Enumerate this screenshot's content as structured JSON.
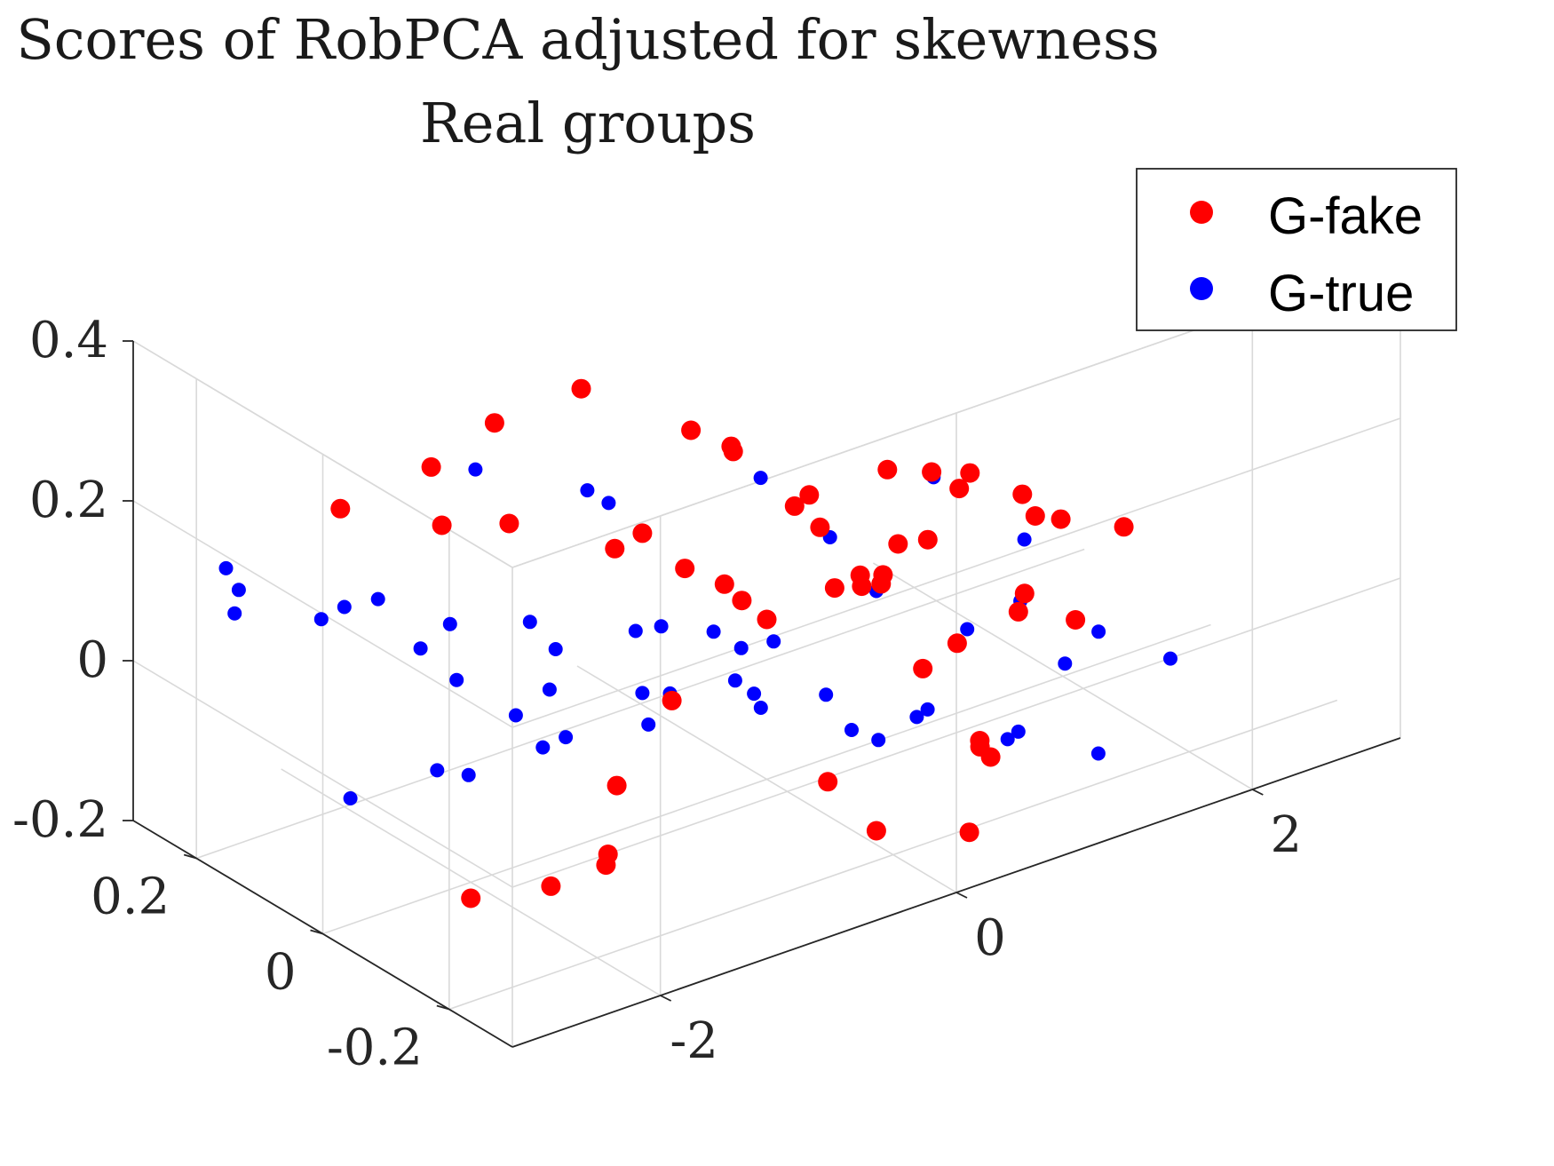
{
  "chart_data": {
    "type": "scatter",
    "dimensions": 3,
    "title": "Scores of RobPCA adjusted for skewness",
    "subtitle": "Real groups",
    "xlabel": "",
    "ylabel": "",
    "zlabel": "",
    "grid": true,
    "legend_position": "top-right",
    "axes": {
      "x": {
        "range": [
          -3,
          3
        ],
        "ticks": [
          -2,
          0,
          2
        ],
        "tick_labels": [
          "-2",
          "0",
          "2"
        ]
      },
      "y": {
        "range": [
          -0.3,
          0.3
        ],
        "ticks": [
          -0.2,
          0,
          0.2
        ],
        "tick_labels": [
          "-0.2",
          "0",
          "0.2"
        ]
      },
      "z": {
        "range": [
          -0.2,
          0.4
        ],
        "ticks": [
          -0.2,
          0,
          0.2,
          0.4
        ],
        "tick_labels": [
          "-0.2",
          "0",
          "0.2",
          "0.4"
        ]
      }
    },
    "series": [
      {
        "name": "G-fake",
        "color": "#ff0000",
        "points": [
          [
            0.5,
            0.05,
            0.1
          ],
          [
            0.9,
            0.02,
            0.12
          ],
          [
            1.3,
            0.0,
            0.08
          ],
          [
            1.6,
            -0.05,
            0.05
          ],
          [
            0.2,
            0.1,
            0.15
          ],
          [
            0.7,
            -0.02,
            0.02
          ],
          [
            1.1,
            0.05,
            0.0
          ],
          [
            1.4,
            -0.08,
            -0.02
          ],
          [
            0.0,
            0.12,
            0.18
          ],
          [
            0.4,
            0.15,
            0.12
          ],
          [
            -0.4,
            0.2,
            0.22
          ],
          [
            -0.9,
            0.22,
            0.2
          ],
          [
            -1.2,
            0.25,
            0.15
          ],
          [
            0.8,
            0.08,
            -0.05
          ],
          [
            1.2,
            0.1,
            -0.08
          ],
          [
            1.7,
            0.0,
            -0.1
          ],
          [
            2.0,
            -0.02,
            -0.12
          ],
          [
            1.5,
            0.05,
            -0.15
          ],
          [
            0.6,
            0.18,
            -0.1
          ],
          [
            0.3,
            0.2,
            -0.05
          ],
          [
            -0.2,
            0.15,
            0.05
          ],
          [
            -0.6,
            0.1,
            0.08
          ],
          [
            0.9,
            -0.05,
            0.15
          ],
          [
            1.3,
            -0.1,
            0.12
          ],
          [
            1.9,
            -0.12,
            0.05
          ],
          [
            -1.5,
            -0.1,
            -0.15
          ],
          [
            -1.8,
            -0.08,
            -0.18
          ],
          [
            -1.3,
            -0.05,
            -0.2
          ],
          [
            -2.0,
            0.0,
            -0.22
          ],
          [
            -0.8,
            0.05,
            -0.18
          ],
          [
            0.1,
            -0.15,
            -0.2
          ],
          [
            0.6,
            -0.18,
            -0.22
          ],
          [
            1.0,
            -0.12,
            -0.18
          ],
          [
            -1.0,
            0.28,
            0.05
          ],
          [
            -1.6,
            0.3,
            0.1
          ],
          [
            0.2,
            -0.2,
            0.02
          ],
          [
            0.5,
            -0.22,
            -0.08
          ],
          [
            1.8,
            0.1,
            0.02
          ],
          [
            2.2,
            0.05,
            -0.04
          ],
          [
            -0.3,
            0.08,
            -0.12
          ],
          [
            0.0,
            0.0,
            0.0
          ],
          [
            0.7,
            0.12,
            0.04
          ],
          [
            1.0,
            0.15,
            -0.02
          ],
          [
            -0.5,
            -0.05,
            0.1
          ],
          [
            -1.1,
            0.15,
            0.12
          ],
          [
            1.4,
            0.18,
            -0.12
          ],
          [
            1.6,
            0.12,
            -0.06
          ],
          [
            0.3,
            -0.08,
            0.06
          ],
          [
            -0.1,
            -0.12,
            -0.14
          ],
          [
            0.8,
            -0.15,
            -0.14
          ]
        ]
      },
      {
        "name": "G-true",
        "color": "#0000ff",
        "points": [
          [
            -0.5,
            0.05,
            0.0
          ],
          [
            -1.0,
            0.1,
            -0.02
          ],
          [
            -1.5,
            0.15,
            0.02
          ],
          [
            -2.0,
            0.2,
            0.05
          ],
          [
            -2.5,
            0.25,
            0.08
          ],
          [
            -0.3,
            -0.05,
            -0.05
          ],
          [
            -0.8,
            0.0,
            -0.08
          ],
          [
            -1.3,
            0.05,
            -0.1
          ],
          [
            -1.8,
            0.1,
            -0.12
          ],
          [
            -0.2,
            0.15,
            -0.15
          ],
          [
            0.0,
            0.05,
            -0.1
          ],
          [
            0.4,
            0.0,
            -0.12
          ],
          [
            0.8,
            -0.05,
            -0.15
          ],
          [
            1.2,
            -0.1,
            -0.18
          ],
          [
            1.6,
            -0.15,
            -0.2
          ],
          [
            -0.6,
            -0.1,
            0.05
          ],
          [
            -1.1,
            -0.05,
            0.08
          ],
          [
            -1.6,
            0.0,
            0.1
          ],
          [
            -2.2,
            0.1,
            0.12
          ],
          [
            -2.8,
            0.2,
            0.15
          ],
          [
            0.2,
            0.2,
            -0.2
          ],
          [
            -0.4,
            0.25,
            -0.18
          ],
          [
            -0.9,
            0.28,
            -0.15
          ],
          [
            0.6,
            0.15,
            -0.22
          ],
          [
            1.0,
            0.1,
            -0.25
          ],
          [
            -1.4,
            0.22,
            -0.05
          ],
          [
            -1.9,
            0.26,
            0.0
          ],
          [
            -2.4,
            0.28,
            0.03
          ],
          [
            0.1,
            -0.15,
            0.1
          ],
          [
            0.5,
            -0.2,
            0.05
          ],
          [
            1.5,
            -0.05,
            -0.05
          ],
          [
            1.9,
            -0.08,
            -0.1
          ],
          [
            2.3,
            -0.1,
            -0.15
          ],
          [
            -0.7,
            0.12,
            0.15
          ],
          [
            -1.2,
            0.18,
            0.18
          ],
          [
            0.3,
            0.08,
            0.12
          ],
          [
            0.7,
            -0.1,
            0.18
          ],
          [
            1.1,
            -0.15,
            0.1
          ],
          [
            -0.1,
            -0.2,
            -0.05
          ],
          [
            0.9,
            0.2,
            -0.18
          ],
          [
            -2.6,
            0.05,
            -0.08
          ],
          [
            -2.1,
            -0.02,
            -0.05
          ],
          [
            -1.7,
            -0.08,
            0.0
          ],
          [
            1.3,
            0.05,
            -0.22
          ],
          [
            1.7,
            0.0,
            -0.25
          ],
          [
            -0.3,
            0.18,
            0.08
          ],
          [
            0.0,
            -0.1,
            0.15
          ],
          [
            -1.0,
            -0.15,
            0.12
          ],
          [
            2.1,
            0.02,
            -0.2
          ],
          [
            -0.5,
            0.28,
            -0.22
          ]
        ]
      }
    ]
  }
}
